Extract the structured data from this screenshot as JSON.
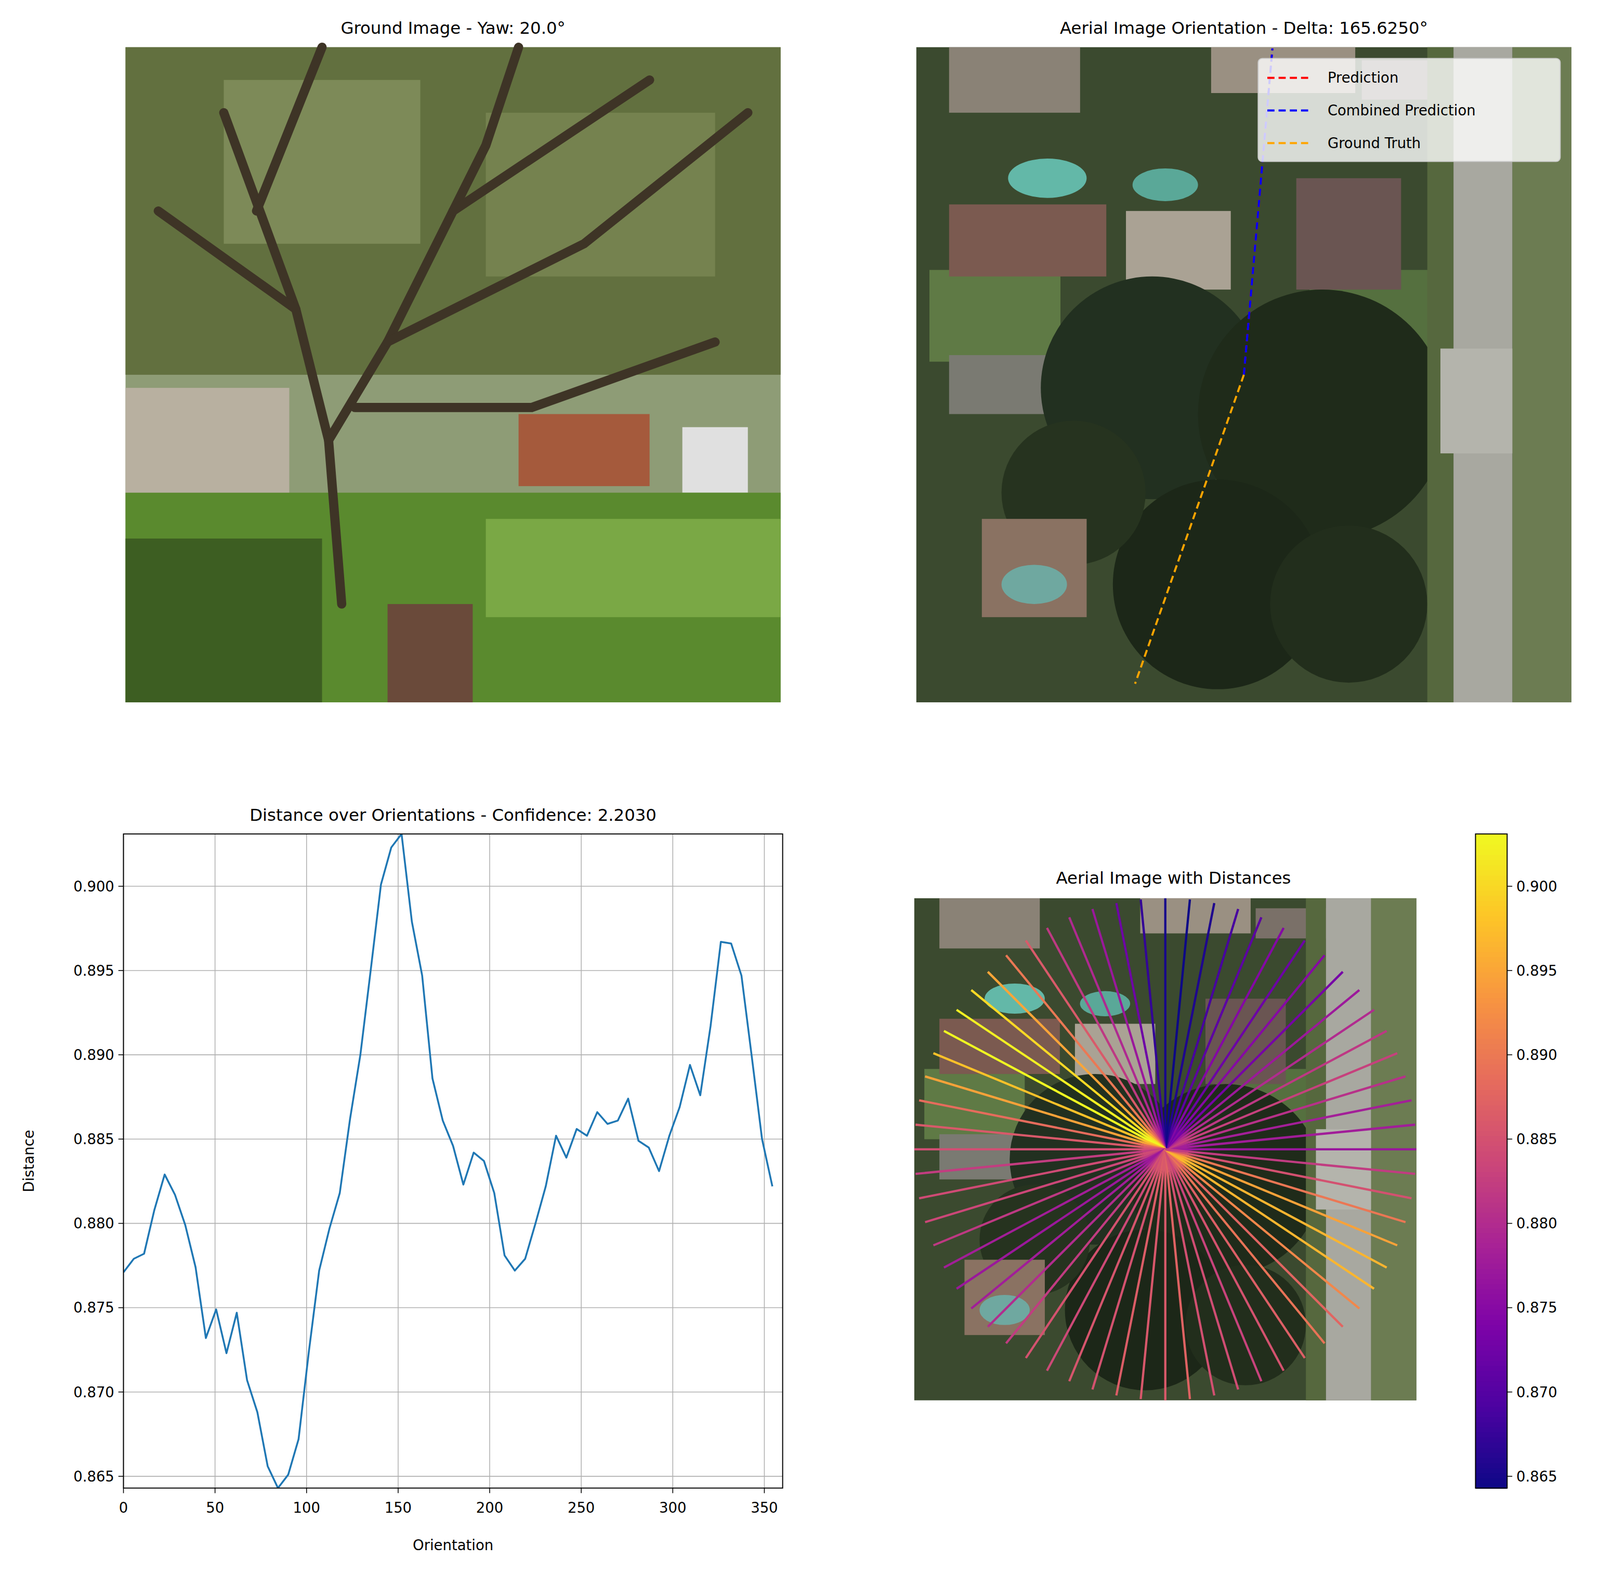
{
  "chart_data": [
    {
      "type": "image",
      "title": "Ground Image - Yaw: 20.0°"
    },
    {
      "type": "orientation",
      "title": "Aerial Image Orientation - Delta: 165.6250°",
      "legend": "upper right",
      "series": [
        {
          "name": "Prediction",
          "color": "#ff0000",
          "line_style": "dashed",
          "values": [
            5
          ]
        },
        {
          "name": "Combined Prediction",
          "color": "#0000ff",
          "line_style": "dashed",
          "values": [
            5
          ]
        },
        {
          "name": "Ground Truth",
          "color": "#ffa500",
          "line_style": "dashed",
          "values": [
            199.4
          ]
        }
      ]
    },
    {
      "type": "line",
      "title": "Distance over Orientations - Confidence: 2.2030",
      "x_label": "Orientation",
      "y_label": "Distance",
      "color": "#1f77b4",
      "grid": true,
      "xlim": [
        0,
        360
      ],
      "ylim": [
        0.8643,
        0.9031
      ],
      "xticks": [
        0,
        50,
        100,
        150,
        200,
        250,
        300,
        350
      ],
      "yticks": [
        0.865,
        {
          "value": 0.87,
          "label": "0.870"
        },
        0.875,
        {
          "value": 0.88,
          "label": "0.880"
        },
        0.885,
        {
          "value": 0.89,
          "label": "0.890"
        },
        0.895,
        {
          "value": 0.9,
          "label": "0.900"
        }
      ],
      "x": [
        0,
        5.625,
        11.25,
        16.875,
        22.5,
        28.125,
        33.75,
        39.375,
        45,
        50.625,
        56.25,
        61.875,
        67.5,
        73.125,
        78.75,
        84.375,
        90,
        95.625,
        101.25,
        106.875,
        112.5,
        118.125,
        123.75,
        129.375,
        135,
        140.625,
        146.25,
        151.875,
        157.5,
        163.125,
        168.75,
        174.375,
        180,
        185.625,
        191.25,
        196.875,
        202.5,
        208.125,
        213.75,
        219.375,
        225,
        230.625,
        236.25,
        241.875,
        247.5,
        253.125,
        258.75,
        264.375,
        270,
        275.625,
        281.25,
        286.875,
        292.5,
        298.125,
        303.75,
        309.375,
        315,
        320.625,
        326.25,
        331.875,
        337.5,
        343.125,
        348.75,
        354.375
      ],
      "values": [
        0.8771,
        0.8779,
        0.8782,
        0.8808,
        0.8829,
        0.8817,
        0.8799,
        0.8774,
        0.8732,
        0.8749,
        0.8723,
        0.8747,
        0.8707,
        0.8688,
        0.8656,
        0.8643,
        0.8651,
        0.8672,
        0.8724,
        0.8772,
        0.8797,
        0.8818,
        0.8862,
        0.89,
        0.895,
        0.9001,
        0.9023,
        0.9031,
        0.8979,
        0.8947,
        0.8886,
        0.8861,
        0.8846,
        0.8823,
        0.8842,
        0.8837,
        0.8818,
        0.8781,
        0.8772,
        0.8779,
        0.88,
        0.8822,
        0.8852,
        0.8839,
        0.8856,
        0.8852,
        0.8866,
        0.8859,
        0.8861,
        0.8874,
        0.8849,
        0.8845,
        0.8831,
        0.8852,
        0.8869,
        0.8894,
        0.8876,
        0.8917,
        0.8967,
        0.8966,
        0.8947,
        0.8899,
        0.885,
        0.8822
      ]
    },
    {
      "type": "radial",
      "title": "Aerial Image with Distances",
      "x": [
        0,
        5.625,
        11.25,
        16.875,
        22.5,
        28.125,
        33.75,
        39.375,
        45,
        50.625,
        56.25,
        61.875,
        67.5,
        73.125,
        78.75,
        84.375,
        90,
        95.625,
        101.25,
        106.875,
        112.5,
        118.125,
        123.75,
        129.375,
        135,
        140.625,
        146.25,
        151.875,
        157.5,
        163.125,
        168.75,
        174.375,
        180,
        185.625,
        191.25,
        196.875,
        202.5,
        208.125,
        213.75,
        219.375,
        225,
        230.625,
        236.25,
        241.875,
        247.5,
        253.125,
        258.75,
        264.375,
        270,
        275.625,
        281.25,
        286.875,
        292.5,
        298.125,
        303.75,
        309.375,
        315,
        320.625,
        326.25,
        331.875,
        337.5,
        343.125,
        348.75,
        354.375
      ],
      "values": [
        0.8771,
        0.8779,
        0.8782,
        0.8808,
        0.8829,
        0.8817,
        0.8799,
        0.8774,
        0.8732,
        0.8749,
        0.8723,
        0.8747,
        0.8707,
        0.8688,
        0.8656,
        0.8643,
        0.8651,
        0.8672,
        0.8724,
        0.8772,
        0.8797,
        0.8818,
        0.8862,
        0.89,
        0.895,
        0.9001,
        0.9023,
        0.9031,
        0.8979,
        0.8947,
        0.8886,
        0.8861,
        0.8846,
        0.8823,
        0.8842,
        0.8837,
        0.8818,
        0.8781,
        0.8772,
        0.8779,
        0.88,
        0.8822,
        0.8852,
        0.8839,
        0.8856,
        0.8852,
        0.8866,
        0.8859,
        0.8861,
        0.8874,
        0.8849,
        0.8845,
        0.8831,
        0.8852,
        0.8869,
        0.8894,
        0.8876,
        0.8917,
        0.8967,
        0.8966,
        0.8947,
        0.8899,
        0.885,
        0.8822
      ],
      "colorbar": {
        "range": [
          0.8643,
          0.9031
        ],
        "ticks": [
          0.865,
          {
            "value": 0.87,
            "label": "0.870"
          },
          0.875,
          {
            "value": 0.88,
            "label": "0.880"
          },
          0.885,
          {
            "value": 0.89,
            "label": "0.890"
          },
          0.895,
          {
            "value": 0.9,
            "label": "0.900"
          }
        ]
      }
    }
  ]
}
